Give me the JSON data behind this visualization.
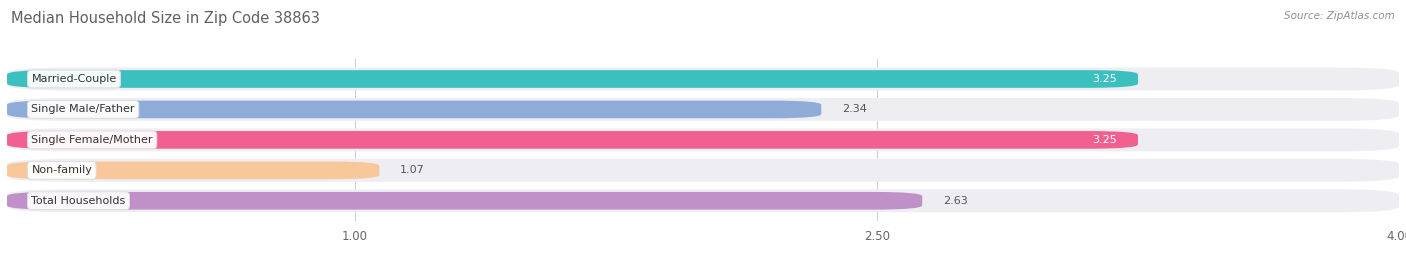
{
  "title": "Median Household Size in Zip Code 38863",
  "source": "Source: ZipAtlas.com",
  "categories": [
    "Married-Couple",
    "Single Male/Father",
    "Single Female/Mother",
    "Non-family",
    "Total Households"
  ],
  "values": [
    3.25,
    2.34,
    3.25,
    1.07,
    2.63
  ],
  "colors": [
    "#3bbfbf",
    "#8facd8",
    "#f06090",
    "#f8c89a",
    "#c090c8"
  ],
  "bar_background": "#ededf2",
  "xlim_data": [
    0,
    4.0
  ],
  "xticks": [
    1.0,
    2.5,
    4.0
  ],
  "title_color": "#606060",
  "source_color": "#909090",
  "figsize": [
    14.06,
    2.69
  ],
  "dpi": 100,
  "inside_label_threshold": 2.8,
  "value_inside_color": "#ffffff",
  "value_outside_color": "#555555",
  "label_text_color": "#333333",
  "label_box_edge_color": "#dddddd"
}
